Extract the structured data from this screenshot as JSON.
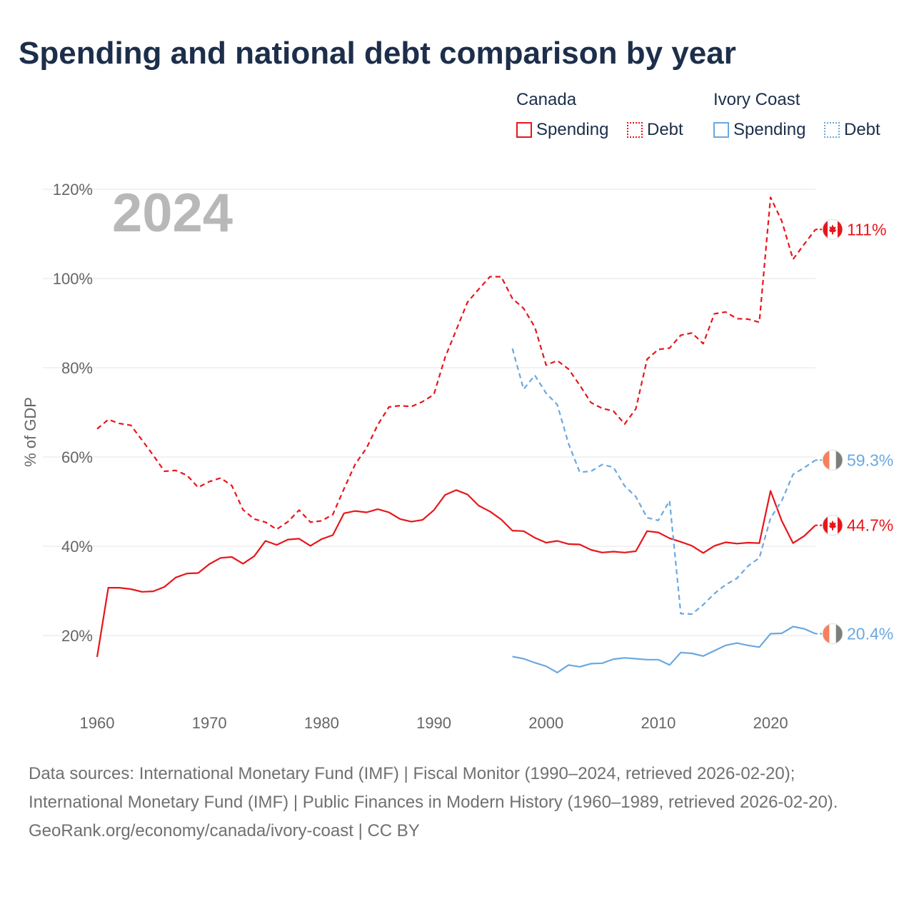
{
  "title": "Spending and national debt comparison by year",
  "legend": {
    "canada_title": "Canada",
    "ivory_title": "Ivory Coast",
    "spending": "Spending",
    "debt": "Debt"
  },
  "colors": {
    "canada": "#e8151b",
    "ivory": "#6aa8e0",
    "grid": "#e5e5e5",
    "text": "#1c2e4a"
  },
  "footer": {
    "sources": "Data sources: International Monetary Fund (IMF) | Fiscal Monitor (1990–2024, retrieved 2026-02-20); International Monetary Fund (IMF) | Public Finances in Modern History (1960–1989, retrieved 2026-02-20).",
    "attribution": "GeoRank.org/economy/canada/ivory-coast | CC BY"
  },
  "chart_data": {
    "type": "line",
    "year_label": "2024",
    "ylabel": "% of GDP",
    "xlim": [
      1960,
      2024
    ],
    "ylim": [
      4,
      124
    ],
    "x_ticks": [
      1960,
      1970,
      1980,
      1990,
      2000,
      2010,
      2020
    ],
    "x_tick_labels": [
      "1960",
      "1970",
      "1980",
      "1990",
      "2000",
      "2010",
      "2020"
    ],
    "y_ticks": [
      20,
      40,
      60,
      80,
      100,
      120
    ],
    "y_tick_labels": [
      "20%",
      "40%",
      "60%",
      "80%",
      "100%",
      "120%"
    ],
    "series": [
      {
        "name": "Canada Debt",
        "country": "Canada",
        "measure": "Debt",
        "style": "dashed",
        "color": "#e8151b",
        "end_label": "111%",
        "x": [
          1960,
          1961,
          1962,
          1963,
          1964,
          1965,
          1966,
          1967,
          1968,
          1969,
          1970,
          1971,
          1972,
          1973,
          1974,
          1975,
          1976,
          1977,
          1978,
          1979,
          1980,
          1981,
          1982,
          1983,
          1984,
          1985,
          1986,
          1987,
          1988,
          1989,
          1990,
          1991,
          1992,
          1993,
          1994,
          1995,
          1996,
          1997,
          1998,
          1999,
          2000,
          2001,
          2002,
          2003,
          2004,
          2005,
          2006,
          2007,
          2008,
          2009,
          2010,
          2011,
          2012,
          2013,
          2014,
          2015,
          2016,
          2017,
          2018,
          2019,
          2020,
          2021,
          2022,
          2023,
          2024
        ],
        "values": [
          66.3,
          68.4,
          67.5,
          67.1,
          63.8,
          60.4,
          56.8,
          57.0,
          55.9,
          53.2,
          54.5,
          55.3,
          53.6,
          48.2,
          46.1,
          45.4,
          43.8,
          45.5,
          48.1,
          45.4,
          45.7,
          47.1,
          52.9,
          58.4,
          62.0,
          67.2,
          71.2,
          71.5,
          71.3,
          72.4,
          74.0,
          82.3,
          88.5,
          94.7,
          97.6,
          100.4,
          100.4,
          95.5,
          93.3,
          89.1,
          80.6,
          81.6,
          79.7,
          76.1,
          72.2,
          70.9,
          70.3,
          67.4,
          70.8,
          81.9,
          84.1,
          84.4,
          87.3,
          87.8,
          85.4,
          92.1,
          92.5,
          91.0,
          90.9,
          90.2,
          118.2,
          112.9,
          104.3,
          107.7,
          111.0
        ]
      },
      {
        "name": "Canada Spending",
        "country": "Canada",
        "measure": "Spending",
        "style": "solid",
        "color": "#e8151b",
        "end_label": "44.7%",
        "x": [
          1960,
          1961,
          1962,
          1963,
          1964,
          1965,
          1966,
          1967,
          1968,
          1969,
          1970,
          1971,
          1972,
          1973,
          1974,
          1975,
          1976,
          1977,
          1978,
          1979,
          1980,
          1981,
          1982,
          1983,
          1984,
          1985,
          1986,
          1987,
          1988,
          1989,
          1990,
          1991,
          1992,
          1993,
          1994,
          1995,
          1996,
          1997,
          1998,
          1999,
          2000,
          2001,
          2002,
          2003,
          2004,
          2005,
          2006,
          2007,
          2008,
          2009,
          2010,
          2011,
          2012,
          2013,
          2014,
          2015,
          2016,
          2017,
          2018,
          2019,
          2020,
          2021,
          2022,
          2023,
          2024
        ],
        "values": [
          15.2,
          30.7,
          30.7,
          30.4,
          29.8,
          29.9,
          30.9,
          33.0,
          33.9,
          34.0,
          36.0,
          37.4,
          37.6,
          36.1,
          37.8,
          41.2,
          40.3,
          41.5,
          41.7,
          40.1,
          41.6,
          42.5,
          47.4,
          47.9,
          47.6,
          48.3,
          47.6,
          46.1,
          45.5,
          45.9,
          48.1,
          51.5,
          52.6,
          51.6,
          49.1,
          47.8,
          46.0,
          43.5,
          43.4,
          41.9,
          40.8,
          41.2,
          40.5,
          40.4,
          39.2,
          38.6,
          38.8,
          38.6,
          38.9,
          43.4,
          43.1,
          41.8,
          41.0,
          40.1,
          38.5,
          40.1,
          40.9,
          40.6,
          40.8,
          40.7,
          52.4,
          45.7,
          40.7,
          42.3,
          44.7
        ]
      },
      {
        "name": "Ivory Coast Debt",
        "country": "Ivory Coast",
        "measure": "Debt",
        "style": "dashed",
        "color": "#6aa8e0",
        "end_label": "59.3%",
        "x": [
          1997,
          1998,
          1999,
          2000,
          2001,
          2002,
          2003,
          2004,
          2005,
          2006,
          2007,
          2008,
          2009,
          2010,
          2011,
          2012,
          2013,
          2014,
          2015,
          2016,
          2017,
          2018,
          2019,
          2020,
          2021,
          2022,
          2023,
          2024
        ],
        "values": [
          84.3,
          75.2,
          78.3,
          74.3,
          71.7,
          63.0,
          56.6,
          56.8,
          58.3,
          57.7,
          53.5,
          51.1,
          46.4,
          45.8,
          50.2,
          24.9,
          24.8,
          26.9,
          29.4,
          31.4,
          32.8,
          35.6,
          37.4,
          46.3,
          50.2,
          56.1,
          57.6,
          59.3
        ]
      },
      {
        "name": "Ivory Coast Spending",
        "country": "Ivory Coast",
        "measure": "Spending",
        "style": "solid",
        "color": "#6aa8e0",
        "end_label": "20.4%",
        "x": [
          1997,
          1998,
          1999,
          2000,
          2001,
          2002,
          2003,
          2004,
          2005,
          2006,
          2007,
          2008,
          2009,
          2010,
          2011,
          2012,
          2013,
          2014,
          2015,
          2016,
          2017,
          2018,
          2019,
          2020,
          2021,
          2022,
          2023,
          2024
        ],
        "values": [
          15.3,
          14.8,
          13.9,
          13.1,
          11.7,
          13.4,
          13.0,
          13.7,
          13.8,
          14.7,
          15.0,
          14.8,
          14.6,
          14.6,
          13.4,
          16.2,
          16.0,
          15.4,
          16.6,
          17.8,
          18.3,
          17.8,
          17.4,
          20.4,
          20.5,
          22.0,
          21.5,
          20.4
        ]
      }
    ]
  }
}
